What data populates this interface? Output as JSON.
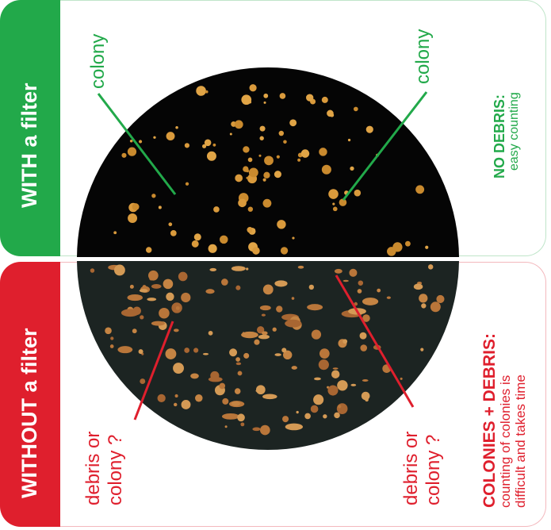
{
  "top_panel": {
    "band_label": "WITH a filter",
    "colony_left": "colony",
    "colony_right": "colony",
    "title": "NO DEBRIS:",
    "subtitle": "easy counting",
    "accent": "#22a94a"
  },
  "bottom_panel": {
    "band_label": "WITHOUT a filter",
    "left_line1": "debris or",
    "left_line2": "colony ?",
    "right_line1": "debris or",
    "right_line2": "colony ?",
    "title": "COLONIES + DEBRIS:",
    "subtitle_line1": "counting of colonies is",
    "subtitle_line2": "difficult and takes time",
    "accent": "#df1f2d"
  },
  "icons": {
    "dish_top": "petri-dish-filtered",
    "dish_bottom": "petri-dish-unfiltered"
  }
}
